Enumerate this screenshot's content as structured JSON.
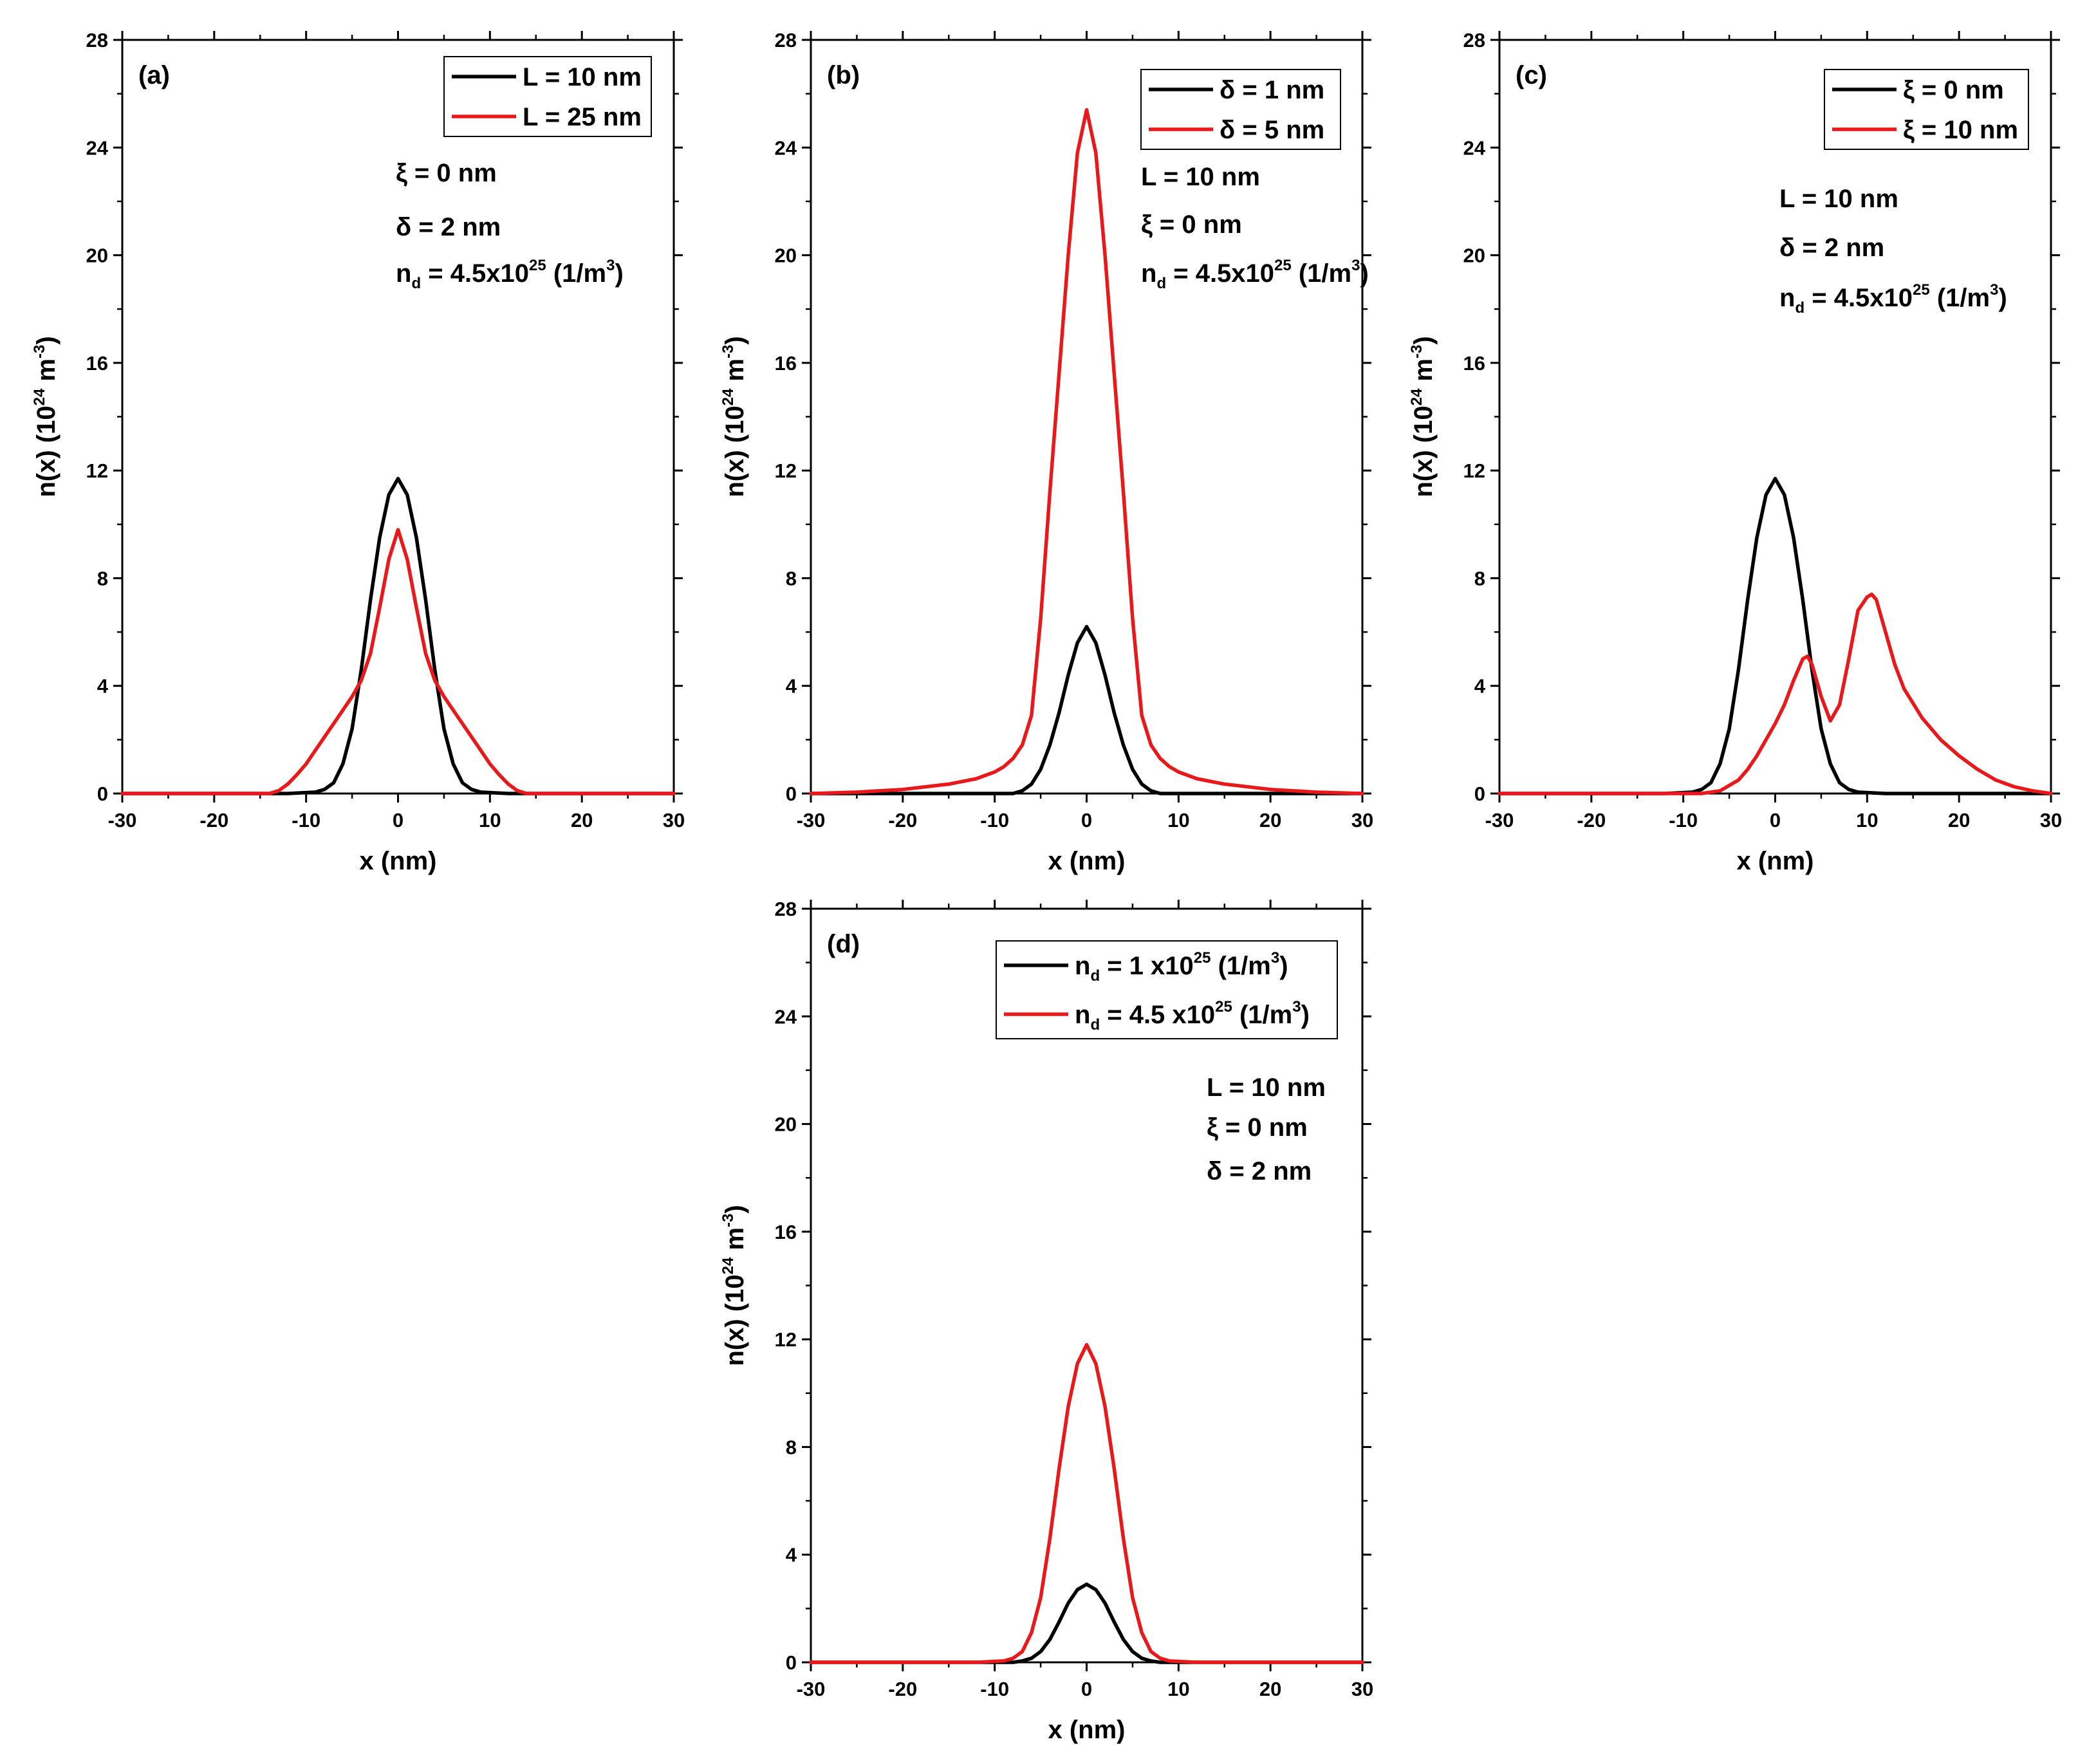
{
  "colors": {
    "black_series": "#000000",
    "red_series": "#e8191a"
  },
  "chart_data": [
    {
      "id": "a",
      "type": "line",
      "panel_label": "(a)",
      "xlabel": "x (nm)",
      "ylabel": "n(x) (10^24 m^-3)",
      "xlim": [
        -30,
        30
      ],
      "ylim": [
        0,
        28
      ],
      "xticks": [
        "-30",
        "-20",
        "-10",
        "0",
        "10",
        "20",
        "30"
      ],
      "yticks": [
        "0",
        "4",
        "8",
        "12",
        "16",
        "20",
        "24",
        "28"
      ],
      "legend_position": "top-right",
      "series": [
        {
          "name": "L = 10 nm",
          "color": "#000000",
          "x": [
            -30,
            -12,
            -9,
            -8,
            -7,
            -6,
            -5,
            -4,
            -3,
            -2,
            -1,
            0,
            1,
            2,
            3,
            4,
            5,
            6,
            7,
            8,
            9,
            12,
            30
          ],
          "y": [
            0,
            0,
            0.05,
            0.15,
            0.4,
            1.1,
            2.4,
            4.6,
            7.2,
            9.5,
            11.1,
            11.7,
            11.1,
            9.5,
            7.2,
            4.6,
            2.4,
            1.1,
            0.4,
            0.15,
            0.05,
            0,
            0
          ]
        },
        {
          "name": "L = 25 nm",
          "color": "#e8191a",
          "x": [
            -30,
            -14,
            -13,
            -12,
            -11,
            -10,
            -9,
            -8,
            -7,
            -6,
            -5,
            -4,
            -3,
            -2,
            -1,
            0,
            1,
            2,
            3,
            4,
            5,
            6,
            7,
            8,
            9,
            10,
            11,
            12,
            13,
            14,
            30
          ],
          "y": [
            0,
            0,
            0.1,
            0.35,
            0.7,
            1.1,
            1.6,
            2.1,
            2.6,
            3.1,
            3.6,
            4.2,
            5.2,
            6.9,
            8.7,
            9.8,
            8.7,
            6.9,
            5.2,
            4.2,
            3.6,
            3.1,
            2.6,
            2.1,
            1.6,
            1.1,
            0.7,
            0.35,
            0.1,
            0,
            0
          ]
        }
      ],
      "legend": [
        "L = 10 nm",
        "L = 25 nm"
      ],
      "annotations": [
        {
          "symbol": "ξ",
          "text": " = 0 nm"
        },
        {
          "symbol": "δ",
          "text": " = 2 nm"
        },
        {
          "nd": true,
          "base": "n",
          "sub": "d",
          "mid": " = 4.5x10",
          "sup": "25",
          "tail": " (1/m",
          "sup2": "3",
          "end": ")"
        }
      ]
    },
    {
      "id": "b",
      "type": "line",
      "panel_label": "(b)",
      "xlabel": "x (nm)",
      "ylabel": "n(x) (10^24 m^-3)",
      "xlim": [
        -30,
        30
      ],
      "ylim": [
        0,
        28
      ],
      "xticks": [
        "-30",
        "-20",
        "-10",
        "0",
        "10",
        "20",
        "30"
      ],
      "yticks": [
        "0",
        "4",
        "8",
        "12",
        "16",
        "20",
        "24",
        "28"
      ],
      "legend_position": "top-right",
      "series": [
        {
          "name": "δ = 1 nm",
          "color": "#000000",
          "x": [
            -30,
            -8,
            -7,
            -6,
            -5,
            -4,
            -3,
            -2,
            -1,
            0,
            1,
            2,
            3,
            4,
            5,
            6,
            7,
            8,
            30
          ],
          "y": [
            0,
            0,
            0.1,
            0.35,
            0.9,
            1.8,
            3.0,
            4.4,
            5.6,
            6.2,
            5.6,
            4.4,
            3.0,
            1.8,
            0.9,
            0.35,
            0.1,
            0,
            0
          ]
        },
        {
          "name": "δ = 5 nm",
          "color": "#e8191a",
          "x": [
            -30,
            -25,
            -20,
            -15,
            -12,
            -10,
            -9,
            -8,
            -7,
            -6,
            -5,
            -4,
            -3,
            -2,
            -1,
            0,
            1,
            2,
            3,
            4,
            5,
            6,
            7,
            8,
            9,
            10,
            12,
            15,
            20,
            25,
            30
          ],
          "y": [
            0,
            0.05,
            0.15,
            0.35,
            0.55,
            0.8,
            1.0,
            1.3,
            1.8,
            2.9,
            6.5,
            11.2,
            15.6,
            20.0,
            23.8,
            25.4,
            23.8,
            20.0,
            15.6,
            11.2,
            6.5,
            2.9,
            1.8,
            1.3,
            1.0,
            0.8,
            0.55,
            0.35,
            0.15,
            0.05,
            0
          ]
        }
      ],
      "legend": [
        "δ = 1 nm",
        "δ = 5 nm"
      ],
      "annotations": [
        {
          "text": "L = 10 nm"
        },
        {
          "symbol": "ξ",
          "text": " = 0 nm"
        },
        {
          "nd": true,
          "base": "n",
          "sub": "d",
          "mid": " = 4.5x10",
          "sup": "25",
          "tail": " (1/m",
          "sup2": "3",
          "end": ")"
        }
      ]
    },
    {
      "id": "c",
      "type": "line",
      "panel_label": "(c)",
      "xlabel": "x (nm)",
      "ylabel": "n(x) (10^24 m^-3)",
      "xlim": [
        -30,
        30
      ],
      "ylim": [
        0,
        28
      ],
      "xticks": [
        "-30",
        "-20",
        "-10",
        "0",
        "10",
        "20",
        "30"
      ],
      "yticks": [
        "0",
        "4",
        "8",
        "12",
        "16",
        "20",
        "24",
        "28"
      ],
      "legend_position": "top-right",
      "series": [
        {
          "name": "ξ = 0 nm",
          "color": "#000000",
          "x": [
            -30,
            -12,
            -9,
            -8,
            -7,
            -6,
            -5,
            -4,
            -3,
            -2,
            -1,
            0,
            1,
            2,
            3,
            4,
            5,
            6,
            7,
            8,
            9,
            12,
            30
          ],
          "y": [
            0,
            0,
            0.05,
            0.15,
            0.4,
            1.1,
            2.4,
            4.6,
            7.2,
            9.5,
            11.1,
            11.7,
            11.1,
            9.5,
            7.2,
            4.6,
            2.4,
            1.1,
            0.4,
            0.15,
            0.05,
            0,
            0
          ]
        },
        {
          "name": "ξ = 10 nm",
          "color": "#e8191a",
          "x": [
            -30,
            -8,
            -6,
            -4,
            -3,
            -2,
            -1,
            0,
            1,
            2,
            3,
            3.5,
            4,
            5,
            6,
            7,
            8,
            9,
            10,
            10.5,
            11,
            12,
            13,
            14,
            16,
            18,
            20,
            22,
            24,
            26,
            28,
            30
          ],
          "y": [
            0,
            0,
            0.1,
            0.5,
            0.9,
            1.4,
            2.0,
            2.6,
            3.3,
            4.2,
            5.0,
            5.1,
            4.8,
            3.6,
            2.7,
            3.3,
            5.0,
            6.8,
            7.3,
            7.4,
            7.2,
            6.0,
            4.8,
            3.9,
            2.8,
            2.0,
            1.4,
            0.9,
            0.5,
            0.25,
            0.1,
            0
          ]
        }
      ],
      "legend": [
        "ξ = 0 nm",
        "ξ = 10 nm"
      ],
      "annotations": [
        {
          "text": "L = 10 nm"
        },
        {
          "symbol": "δ",
          "text": " = 2 nm"
        },
        {
          "nd": true,
          "base": "n",
          "sub": "d",
          "mid": " = 4.5x10",
          "sup": "25",
          "tail": " (1/m",
          "sup2": "3",
          "end": ")"
        }
      ]
    },
    {
      "id": "d",
      "type": "line",
      "panel_label": "(d)",
      "xlabel": "x (nm)",
      "ylabel": "n(x) (10^24 m^-3)",
      "xlim": [
        -30,
        30
      ],
      "ylim": [
        0,
        28
      ],
      "xticks": [
        "-30",
        "-20",
        "-10",
        "0",
        "10",
        "20",
        "30"
      ],
      "yticks": [
        "0",
        "4",
        "8",
        "12",
        "16",
        "20",
        "24",
        "28"
      ],
      "legend_position": "top-right",
      "series": [
        {
          "name": "nd = 1 x10^25 (1/m^3)",
          "color": "#000000",
          "x": [
            -30,
            -8,
            -7,
            -6,
            -5,
            -4,
            -3,
            -2,
            -1,
            0,
            1,
            2,
            3,
            4,
            5,
            6,
            7,
            8,
            30
          ],
          "y": [
            0,
            0,
            0.05,
            0.15,
            0.4,
            0.85,
            1.5,
            2.2,
            2.7,
            2.9,
            2.7,
            2.2,
            1.5,
            0.85,
            0.4,
            0.15,
            0.05,
            0,
            0
          ]
        },
        {
          "name": "nd = 4.5 x10^25 (1/m^3)",
          "color": "#e8191a",
          "x": [
            -30,
            -12,
            -9,
            -8,
            -7,
            -6,
            -5,
            -4,
            -3,
            -2,
            -1,
            0,
            1,
            2,
            3,
            4,
            5,
            6,
            7,
            8,
            9,
            12,
            30
          ],
          "y": [
            0,
            0,
            0.05,
            0.15,
            0.4,
            1.1,
            2.4,
            4.6,
            7.2,
            9.5,
            11.1,
            11.8,
            11.1,
            9.5,
            7.2,
            4.6,
            2.4,
            1.1,
            0.4,
            0.15,
            0.05,
            0,
            0
          ]
        }
      ],
      "legend_rich": [
        {
          "base": "n",
          "sub": "d",
          "mid": " = 1 x10",
          "sup": "25",
          "tail": " (1/m",
          "sup2": "3",
          "end": ")"
        },
        {
          "base": "n",
          "sub": "d",
          "mid": " = 4.5 x10",
          "sup": "25",
          "tail": " (1/m",
          "sup2": "3",
          "end": ")"
        }
      ],
      "annotations": [
        {
          "text": "L = 10 nm"
        },
        {
          "symbol": "ξ",
          "text": " = 0 nm"
        },
        {
          "symbol": "δ",
          "text": " = 2 nm"
        }
      ]
    }
  ],
  "ylabel_parts": {
    "pre": "n(x) (10",
    "sup": "24",
    "mid": " m",
    "sup2": "-3",
    "end": ")"
  }
}
